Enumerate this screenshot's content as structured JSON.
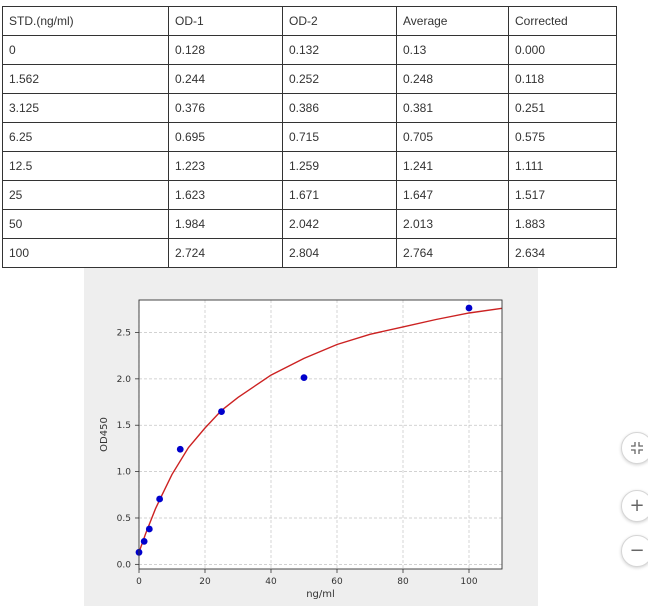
{
  "table": {
    "headers": [
      "STD.(ng/ml)",
      "OD-1",
      "OD-2",
      "Average",
      "Corrected"
    ],
    "rows": [
      [
        "0",
        "0.128",
        "0.132",
        "0.13",
        "0.000"
      ],
      [
        "1.562",
        "0.244",
        "0.252",
        "0.248",
        "0.118"
      ],
      [
        "3.125",
        "0.376",
        "0.386",
        "0.381",
        "0.251"
      ],
      [
        "6.25",
        "0.695",
        "0.715",
        "0.705",
        "0.575"
      ],
      [
        "12.5",
        "1.223",
        "1.259",
        "1.241",
        "1.111"
      ],
      [
        "25",
        "1.623",
        "1.671",
        "1.647",
        "1.517"
      ],
      [
        "50",
        "1.984",
        "2.042",
        "2.013",
        "1.883"
      ],
      [
        "100",
        "2.724",
        "2.804",
        "2.764",
        "2.634"
      ]
    ]
  },
  "chart_data": {
    "type": "scatter",
    "xlabel": "ng/ml",
    "ylabel": "OD450",
    "xlim": [
      0,
      110
    ],
    "ylim": [
      -0.05,
      2.85
    ],
    "xticks": [
      "0",
      "20",
      "40",
      "60",
      "80",
      "100"
    ],
    "yticks": [
      "0.0",
      "0.5",
      "1.0",
      "1.5",
      "2.0",
      "2.5"
    ],
    "grid": true,
    "series": [
      {
        "kind": "points",
        "color": "#0000cc",
        "x": [
          0,
          1.562,
          3.125,
          6.25,
          12.5,
          25,
          50,
          100
        ],
        "y": [
          0.13,
          0.248,
          0.381,
          0.705,
          1.241,
          1.647,
          2.013,
          2.764
        ]
      },
      {
        "kind": "fitted-curve",
        "color": "#cc2222",
        "x": [
          0,
          1,
          2,
          3,
          5,
          7,
          10,
          15,
          20,
          25,
          30,
          40,
          50,
          60,
          70,
          80,
          90,
          100,
          110
        ],
        "y": [
          0.13,
          0.23,
          0.33,
          0.42,
          0.6,
          0.75,
          0.97,
          1.26,
          1.47,
          1.66,
          1.8,
          2.04,
          2.22,
          2.37,
          2.48,
          2.56,
          2.64,
          2.71,
          2.76
        ]
      }
    ]
  },
  "controls": {
    "expand_icon": "collapse-arrows-icon",
    "zoom_in_glyph": "+",
    "zoom_out_glyph": "−"
  }
}
